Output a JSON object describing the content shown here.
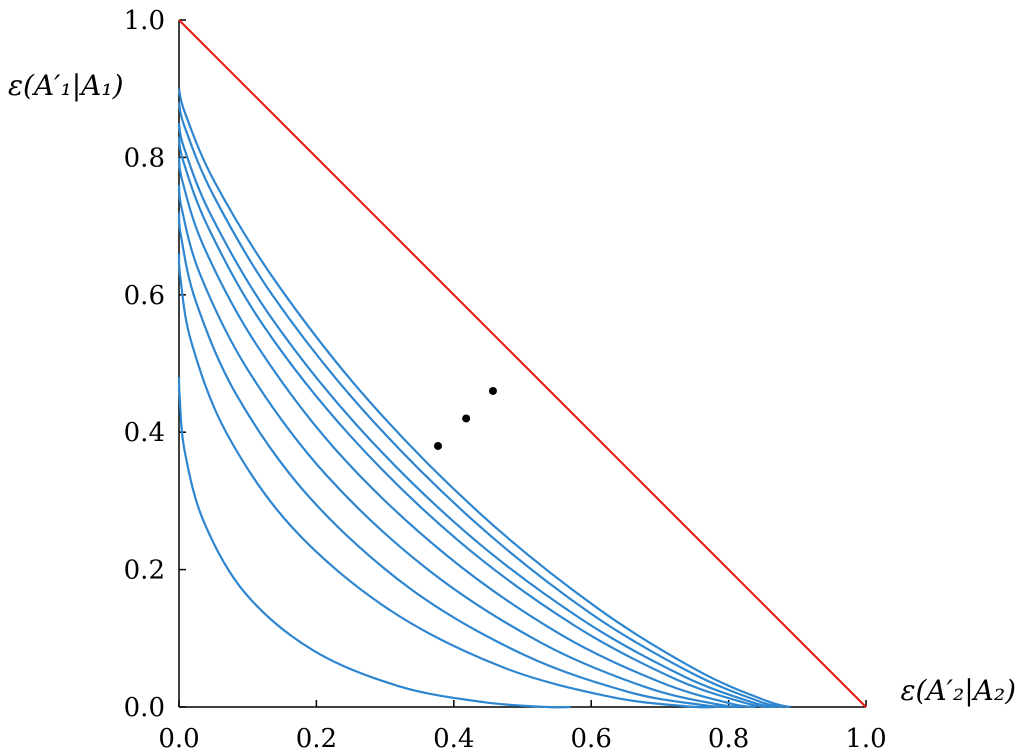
{
  "chart_data": {
    "type": "line",
    "xlabel": "ε(A′₂|A₂)",
    "ylabel": "ε(A′₁|A₁)",
    "xlim": [
      0,
      1
    ],
    "ylim": [
      0,
      1
    ],
    "xticks": [
      {
        "value": 0,
        "label": "0.0"
      },
      {
        "value": 0.2,
        "label": "0.2"
      },
      {
        "value": 0.4,
        "label": "0.4"
      },
      {
        "value": 0.6,
        "label": "0.6"
      },
      {
        "value": 0.8,
        "label": "0.8"
      },
      {
        "value": 1,
        "label": "1.0"
      }
    ],
    "yticks": [
      {
        "value": 0,
        "label": "0.0"
      },
      {
        "value": 0.2,
        "label": "0.2"
      },
      {
        "value": 0.4,
        "label": "0.4"
      },
      {
        "value": 0.6,
        "label": "0.6"
      },
      {
        "value": 0.8,
        "label": "0.8"
      },
      {
        "value": 1,
        "label": "1.0"
      }
    ],
    "series": [
      {
        "color": "#2e86d0",
        "x": [
          0.57,
          0.536,
          0.444,
          0.321,
          0.196,
          0.097,
          0.036,
          0.008,
          0.001,
          0
        ],
        "values": [
          0,
          0,
          0.007,
          0.03,
          0.082,
          0.165,
          0.27,
          0.374,
          0.451,
          0.48
        ]
      },
      {
        "color": "#2e86d0",
        "x": [
          0.78,
          0.739,
          0.627,
          0.471,
          0.307,
          0.166,
          0.069,
          0.018,
          0.002,
          0
        ],
        "values": [
          0,
          0.001,
          0.015,
          0.058,
          0.141,
          0.26,
          0.399,
          0.531,
          0.625,
          0.66
        ]
      },
      {
        "color": "#2e86d0",
        "x": [
          0.8,
          0.761,
          0.654,
          0.502,
          0.337,
          0.191,
          0.085,
          0.025,
          0.003,
          0
        ],
        "values": [
          0,
          0.003,
          0.022,
          0.076,
          0.172,
          0.304,
          0.452,
          0.589,
          0.685,
          0.72
        ]
      },
      {
        "color": "#2e86d0",
        "x": [
          0.82,
          0.783,
          0.679,
          0.53,
          0.365,
          0.214,
          0.1,
          0.031,
          0.004,
          0
        ],
        "values": [
          0,
          0.004,
          0.029,
          0.092,
          0.198,
          0.338,
          0.491,
          0.629,
          0.725,
          0.76
        ]
      },
      {
        "color": "#2e86d0",
        "x": [
          0.84,
          0.803,
          0.701,
          0.553,
          0.388,
          0.233,
          0.113,
          0.037,
          0.005,
          0
        ],
        "values": [
          0,
          0.005,
          0.036,
          0.107,
          0.222,
          0.369,
          0.527,
          0.668,
          0.765,
          0.8
        ]
      },
      {
        "color": "#2e86d0",
        "x": [
          0.86,
          0.824,
          0.722,
          0.575,
          0.408,
          0.25,
          0.123,
          0.043,
          0.006,
          0
        ],
        "values": [
          0,
          0.006,
          0.041,
          0.119,
          0.241,
          0.394,
          0.555,
          0.697,
          0.795,
          0.83
        ]
      },
      {
        "color": "#2e86d0",
        "x": [
          0.87,
          0.834,
          0.734,
          0.587,
          0.419,
          0.259,
          0.13,
          0.046,
          0.007,
          0
        ],
        "values": [
          0,
          0.007,
          0.045,
          0.127,
          0.253,
          0.41,
          0.573,
          0.717,
          0.815,
          0.85
        ]
      },
      {
        "color": "#2e86d0",
        "x": [
          0.88,
          0.845,
          0.745,
          0.598,
          0.431,
          0.269,
          0.137,
          0.05,
          0.008,
          0
        ],
        "values": [
          0,
          0.008,
          0.05,
          0.137,
          0.269,
          0.431,
          0.598,
          0.745,
          0.845,
          0.88
        ]
      },
      {
        "color": "#2e86d0",
        "x": [
          0.89,
          0.855,
          0.755,
          0.609,
          0.44,
          0.277,
          0.143,
          0.052,
          0.009,
          0
        ],
        "values": [
          0,
          0.009,
          0.053,
          0.144,
          0.28,
          0.445,
          0.616,
          0.764,
          0.864,
          0.9
        ]
      },
      {
        "color": "#e8201a",
        "x": [
          0,
          1
        ],
        "values": [
          1,
          0
        ]
      },
      {
        "type": "scatter",
        "color": "#000000",
        "x": [
          0.377,
          0.418,
          0.457
        ],
        "values": [
          0.38,
          0.42,
          0.46
        ]
      }
    ]
  }
}
